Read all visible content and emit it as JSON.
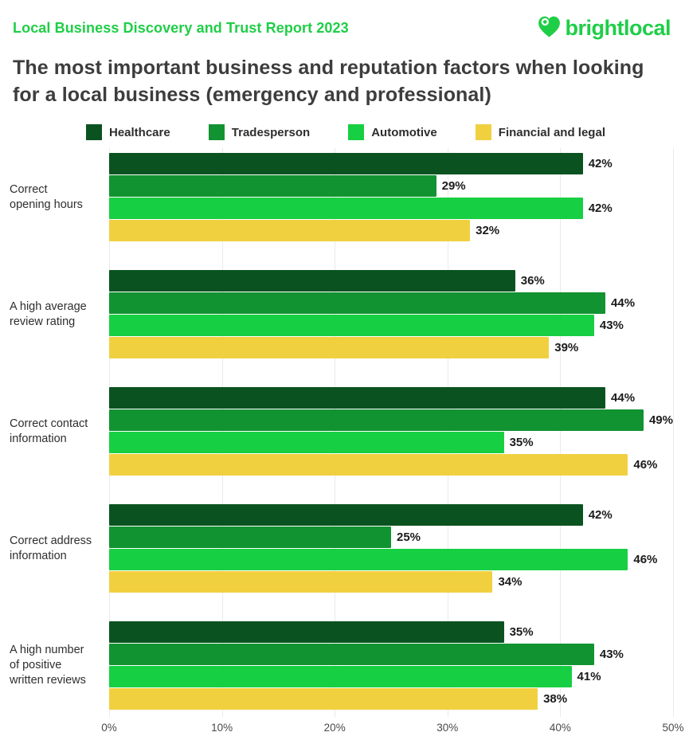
{
  "header": {
    "report_title": "Local Business Discovery and Trust Report 2023",
    "logo": {
      "text": "brightlocal",
      "icon": "heart-location-pin-icon"
    }
  },
  "title": "The most important business and reputation factors when looking for a local business (emergency and professional)",
  "colors": {
    "brand_green": "#1fce47",
    "title_text": "#3d3d3d",
    "value_label_text": "#1b1b1b",
    "axis_text": "#4a4a4a",
    "gridline": "#eaeaea",
    "background": "#ffffff"
  },
  "chart_data": {
    "type": "bar",
    "orientation": "horizontal",
    "title": "The most important business and reputation factors when looking for a local business (emergency and professional)",
    "categories": [
      "Correct\nopening hours",
      "A high average\nreview rating",
      "Correct contact\ninformation",
      "Correct address\ninformation",
      "A high number\nof positive\nwritten reviews"
    ],
    "series": [
      {
        "name": "Healthcare",
        "color": "#0a5320",
        "values": [
          42,
          36,
          44,
          42,
          35
        ]
      },
      {
        "name": "Tradesperson",
        "color": "#129331",
        "values": [
          29,
          44,
          49,
          25,
          43
        ]
      },
      {
        "name": "Automotive",
        "color": "#17cf42",
        "values": [
          42,
          43,
          35,
          46,
          41
        ]
      },
      {
        "name": "Financial and legal",
        "color": "#f1d040",
        "values": [
          32,
          39,
          46,
          34,
          38
        ]
      }
    ],
    "xlim": [
      0,
      50
    ],
    "xtick_values": [
      0,
      10,
      20,
      30,
      40,
      50
    ],
    "xtick_labels": [
      "0%",
      "10%",
      "20%",
      "30%",
      "40%",
      "50%"
    ],
    "value_suffix": "%",
    "legend_position": "top",
    "grid": "vertical"
  }
}
